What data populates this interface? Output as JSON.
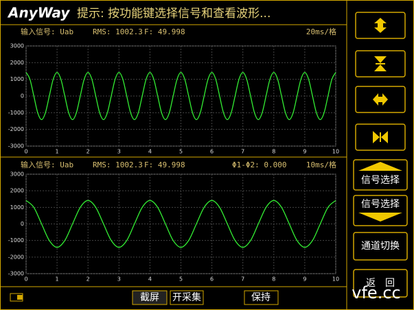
{
  "header": {
    "logo": "AnyWay",
    "hint": "提示: 按功能键选择信号和查看波形..."
  },
  "chart_data": [
    {
      "type": "line",
      "signal": "输入信号: Uab",
      "rms": "RMS: 1002.3",
      "freq": "F: 49.998",
      "scale": "20ms/格",
      "color": "#33ee33",
      "grid": true,
      "xlim": [
        0,
        10
      ],
      "xticks": [
        0,
        1,
        2,
        3,
        4,
        5,
        6,
        7,
        8,
        9,
        10
      ],
      "ylim": [
        -3000,
        3000
      ],
      "yticks": [
        -3000,
        -2000,
        -1000,
        0,
        1000,
        2000,
        3000
      ],
      "x": [
        0,
        0.125,
        0.25,
        0.375,
        0.5,
        0.625,
        0.75,
        0.875,
        1,
        1.125,
        1.25,
        1.375,
        1.5,
        1.625,
        1.75,
        1.875,
        2,
        2.125,
        2.25,
        2.375,
        2.5,
        2.625,
        2.75,
        2.875,
        3,
        3.125,
        3.25,
        3.375,
        3.5,
        3.625,
        3.75,
        3.875,
        4,
        4.125,
        4.25,
        4.375,
        4.5,
        4.625,
        4.75,
        4.875,
        5,
        5.125,
        5.25,
        5.375,
        5.5,
        5.625,
        5.75,
        5.875,
        6,
        6.125,
        6.25,
        6.375,
        6.5,
        6.625,
        6.75,
        6.875,
        7,
        7.125,
        7.25,
        7.375,
        7.5,
        7.625,
        7.75,
        7.875,
        8,
        8.125,
        8.25,
        8.375,
        8.5,
        8.625,
        8.75,
        8.875,
        9,
        9.125,
        9.25,
        9.375,
        9.5,
        9.625,
        9.75,
        9.875,
        10
      ],
      "values": [
        1414,
        1000,
        0,
        -1000,
        -1414,
        -1000,
        0,
        1000,
        1414,
        1000,
        0,
        -1000,
        -1414,
        -1000,
        0,
        1000,
        1414,
        1000,
        0,
        -1000,
        -1414,
        -1000,
        0,
        1000,
        1414,
        1000,
        0,
        -1000,
        -1414,
        -1000,
        0,
        1000,
        1414,
        1000,
        0,
        -1000,
        -1414,
        -1000,
        0,
        1000,
        1414,
        1000,
        0,
        -1000,
        -1414,
        -1000,
        0,
        1000,
        1414,
        1000,
        0,
        -1000,
        -1414,
        -1000,
        0,
        1000,
        1414,
        1000,
        0,
        -1000,
        -1414,
        -1000,
        0,
        1000,
        1414,
        1000,
        0,
        -1000,
        -1414,
        -1000,
        0,
        1000,
        1414,
        1000,
        0,
        -1000,
        -1414,
        -1000,
        0,
        1000,
        1414
      ]
    },
    {
      "type": "line",
      "signal": "输入信号: Uab",
      "rms": "RMS: 1002.3",
      "freq": "F: 49.998",
      "phase": "Φ1-Φ2: 0.000",
      "scale": "10ms/格",
      "color": "#33ee33",
      "grid": true,
      "xlim": [
        0,
        10
      ],
      "xticks": [
        0,
        1,
        2,
        3,
        4,
        5,
        6,
        7,
        8,
        9,
        10
      ],
      "ylim": [
        -3000,
        3000
      ],
      "yticks": [
        -3000,
        -2000,
        -1000,
        0,
        1000,
        2000,
        3000
      ],
      "x": [
        0,
        0.25,
        0.5,
        0.75,
        1,
        1.25,
        1.5,
        1.75,
        2,
        2.25,
        2.5,
        2.75,
        3,
        3.25,
        3.5,
        3.75,
        4,
        4.25,
        4.5,
        4.75,
        5,
        5.25,
        5.5,
        5.75,
        6,
        6.25,
        6.5,
        6.75,
        7,
        7.25,
        7.5,
        7.75,
        8,
        8.25,
        8.5,
        8.75,
        9,
        9.25,
        9.5,
        9.75,
        10
      ],
      "values": [
        1414,
        1000,
        0,
        -1000,
        -1414,
        -1000,
        0,
        1000,
        1414,
        1000,
        0,
        -1000,
        -1414,
        -1000,
        0,
        1000,
        1414,
        1000,
        0,
        -1000,
        -1414,
        -1000,
        0,
        1000,
        1414,
        1000,
        0,
        -1000,
        -1414,
        -1000,
        0,
        1000,
        1414,
        1000,
        0,
        -1000,
        -1414,
        -1000,
        0,
        1000,
        1414
      ]
    }
  ],
  "side_buttons": [
    "信号选择",
    "信号选择",
    "通道切换",
    "返　回"
  ],
  "bottom_buttons": [
    "截屏",
    "开采集",
    "保持"
  ],
  "watermark": "vfe.cc"
}
